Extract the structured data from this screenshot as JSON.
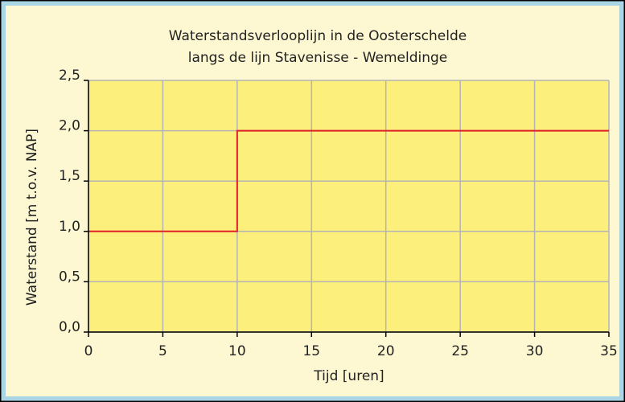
{
  "chart_data": {
    "type": "line",
    "title": [
      "Waterstandsverlooplijn in de Oosterschelde",
      "langs de lijn Stavenisse - Wemeldinge"
    ],
    "x_label": "Tijd  [uren]",
    "y_label": "Waterstand [m t.o.v. NAP]",
    "x": [
      0,
      10,
      10,
      35
    ],
    "series": [
      {
        "name": null,
        "color": "#e01f26",
        "values": [
          1.0,
          1.0,
          2.0,
          2.0
        ]
      }
    ],
    "xlim": [
      0,
      35
    ],
    "xticks": [
      0,
      5,
      10,
      15,
      20,
      25,
      30,
      35
    ],
    "ylim": [
      0,
      2.5
    ],
    "yticks": [
      {
        "value": 0,
        "label": "0,0"
      },
      {
        "value": 0.5,
        "label": "0,5"
      },
      {
        "value": 1.0,
        "label": "1,0"
      },
      {
        "value": 1.5,
        "label": "1,5"
      },
      {
        "value": 2.0,
        "label": "2,0"
      },
      {
        "value": 2.5,
        "label": "2,5"
      }
    ],
    "grid": true
  }
}
